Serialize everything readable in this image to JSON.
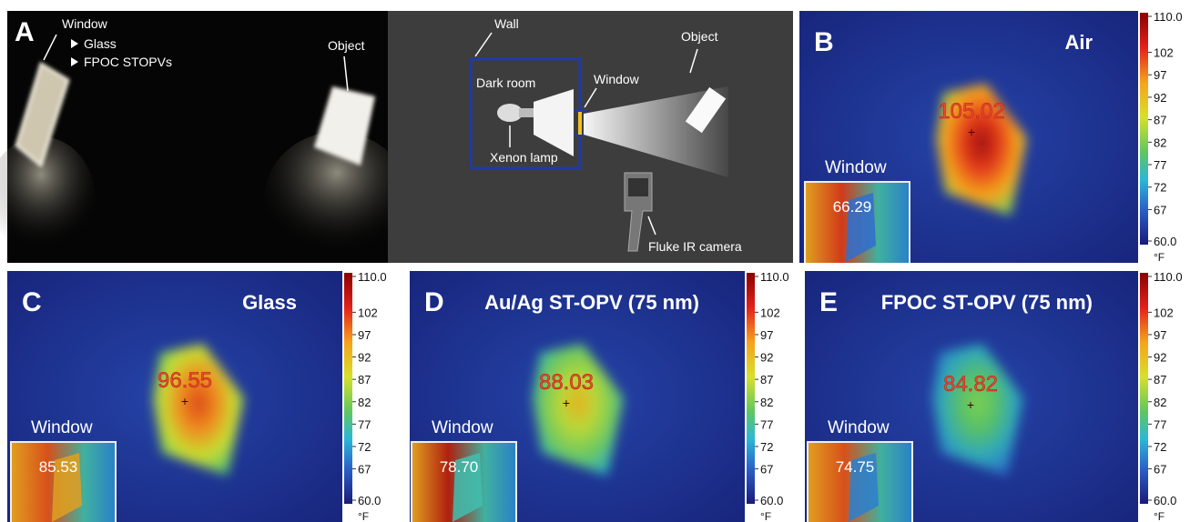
{
  "photo": {
    "letter": "A",
    "window": "Window",
    "items": [
      "Glass",
      "FPOC STOPVs"
    ],
    "object": "Object"
  },
  "diagram": {
    "wall": "Wall",
    "dark_room": "Dark room",
    "window": "Window",
    "object": "Object",
    "lamp": "Xenon lamp",
    "camera": "Fluke IR camera"
  },
  "thermal": [
    {
      "letter": "B",
      "title": "Air",
      "max_temp": "105.02",
      "window_label": "Window",
      "window_temp": "66.29",
      "scale_ticks": [
        "110.0",
        "102",
        "97",
        "92",
        "87",
        "82",
        "77",
        "72",
        "67",
        "60.0"
      ],
      "unit": "°F"
    },
    {
      "letter": "C",
      "title": "Glass",
      "max_temp": "96.55",
      "window_label": "Window",
      "window_temp": "85.53",
      "scale_ticks": [
        "110.0",
        "102",
        "97",
        "92",
        "87",
        "82",
        "77",
        "72",
        "67",
        "60.0"
      ],
      "unit": "°F"
    },
    {
      "letter": "D",
      "title": "Au/Ag ST-OPV (75 nm)",
      "max_temp": "88.03",
      "window_label": "Window",
      "window_temp": "78.70",
      "scale_ticks": [
        "110.0",
        "102",
        "97",
        "92",
        "87",
        "82",
        "77",
        "72",
        "67",
        "60.0"
      ],
      "unit": "°F"
    },
    {
      "letter": "E",
      "title": "FPOC ST-OPV (75 nm)",
      "max_temp": "84.82",
      "window_label": "Window",
      "window_temp": "74.75",
      "scale_ticks": [
        "110.0",
        "102",
        "97",
        "92",
        "87",
        "82",
        "77",
        "72",
        "67",
        "60.0"
      ],
      "unit": "°F"
    }
  ]
}
